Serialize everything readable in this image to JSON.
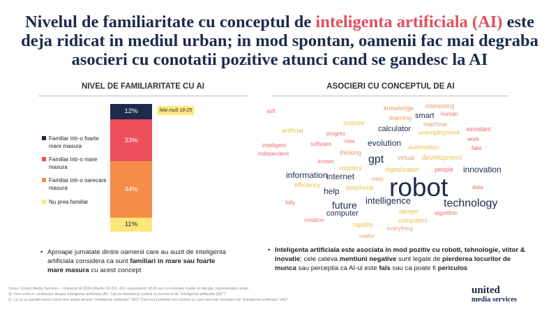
{
  "title": {
    "part1": "Nivelul de familiaritate cu conceptul de ",
    "highlight": "inteligenta artificiala (AI)",
    "part2": " este deja ridicat in mediul urban; in mod spontan, oamenii fac mai degraba asocieri cu conotatii pozitive atunci cand se gandesc la AI",
    "highlight_color": "#e0505c"
  },
  "left_section": {
    "heading": "NIVEL DE FAMILIARITATE CU AI"
  },
  "right_section": {
    "heading": "ASOCIERI CU CONCEPTUL DE AI"
  },
  "mai_mult_label": "Mai mult 18-25",
  "chart_data": {
    "type": "bar",
    "stacked": true,
    "unit": "%",
    "series": [
      {
        "name": "Familiar intr-o foarte mare masura",
        "value": 12,
        "label": "12%",
        "color": "#1c2a4c",
        "text_color": "#ffffff"
      },
      {
        "name": "Familiar intr-o mare masura",
        "value": 33,
        "label": "33%",
        "color": "#ec4f5a",
        "text_color": "#ffffff"
      },
      {
        "name": "Familiar intr-o oarecare masura",
        "value": 44,
        "label": "44%",
        "color": "#f58c48",
        "text_color": "#ffffff"
      },
      {
        "name": "Nu prea familiar",
        "value": 11,
        "label": "11%",
        "color": "#fbe77a",
        "text_color": "#222222"
      }
    ]
  },
  "word_cloud": [
    {
      "text": "robot",
      "color": "#1c2a4c"
    },
    {
      "text": "technology",
      "color": "#1c2a4c"
    },
    {
      "text": "gpt",
      "color": "#1c2a4c"
    },
    {
      "text": "future",
      "color": "#1c2a4c"
    },
    {
      "text": "intelligence",
      "color": "#1c2a4c"
    },
    {
      "text": "information",
      "color": "#1c2a4c"
    },
    {
      "text": "innovation",
      "color": "#1c2a4c"
    },
    {
      "text": "internet",
      "color": "#1c2a4c"
    },
    {
      "text": "evolution",
      "color": "#1c2a4c"
    },
    {
      "text": "help",
      "color": "#1c2a4c"
    },
    {
      "text": "calculator",
      "color": "#1c2a4c"
    },
    {
      "text": "computer",
      "color": "#1c2a4c"
    },
    {
      "text": "smart",
      "color": "#1c2a4c"
    },
    {
      "text": "knowledge",
      "color": "#e0a070"
    },
    {
      "text": "interesting",
      "color": "#e0a070"
    },
    {
      "text": "human",
      "color": "#ec6b6b"
    },
    {
      "text": "soft",
      "color": "#ec6b6b"
    },
    {
      "text": "learning",
      "color": "#e0a070"
    },
    {
      "text": "machine",
      "color": "#e0a070"
    },
    {
      "text": "science",
      "color": "#e8c04a"
    },
    {
      "text": "assistant",
      "color": "#ec6b6b"
    },
    {
      "text": "artificial",
      "color": "#e8c04a"
    },
    {
      "text": "unemployment",
      "color": "#e8c04a"
    },
    {
      "text": "progres",
      "color": "#ec6b6b"
    },
    {
      "text": "work",
      "color": "#ec6b6b"
    },
    {
      "text": "new",
      "color": "#ec6b6b"
    },
    {
      "text": "intelligent",
      "color": "#ec6b6b"
    },
    {
      "text": "software",
      "color": "#ec6b6b"
    },
    {
      "text": "automation",
      "color": "#e8c04a"
    },
    {
      "text": "fake",
      "color": "#ec6b6b"
    },
    {
      "text": "independent",
      "color": "#ec6b6b"
    },
    {
      "text": "thinking",
      "color": "#e0a070"
    },
    {
      "text": "virtual",
      "color": "#e0a070"
    },
    {
      "text": "development",
      "color": "#e8c04a"
    },
    {
      "text": "knows",
      "color": "#ec6b6b"
    },
    {
      "text": "robotics",
      "color": "#e8c04a"
    },
    {
      "text": "digitalization",
      "color": "#e8c04a"
    },
    {
      "text": "people",
      "color": "#ec6b6b"
    },
    {
      "text": "efficiency",
      "color": "#e8c04a"
    },
    {
      "text": "easy",
      "color": "#e0a070"
    },
    {
      "text": "telephone",
      "color": "#e8c04a"
    },
    {
      "text": "data",
      "color": "#ec6b6b"
    },
    {
      "text": "folly",
      "color": "#ec6b6b"
    },
    {
      "text": "danger",
      "color": "#e8c04a"
    },
    {
      "text": "algorithm",
      "color": "#ec6b6b"
    },
    {
      "text": "creation",
      "color": "#ec6b6b"
    },
    {
      "text": "computers",
      "color": "#e8c04a"
    },
    {
      "text": "rapidity",
      "color": "#e8c04a"
    },
    {
      "text": "everything",
      "color": "#e0a070"
    },
    {
      "text": "useful",
      "color": "#e0a070"
    }
  ],
  "bullet_left": {
    "t1": "Aproape jumatate dintre oamenii care au auzit de inteligenta artificiala considera ca sunt ",
    "b1": "familiari in mare sau foarte mare masura",
    "t2": " cu acest concept"
  },
  "bullet_right": {
    "b1": "Inteligenta artificiala este asociata in mod pozitiv cu roboti, tehnologie, viitor & inovatie",
    "t1": "; cele cateva ",
    "b2": "mentiuni negative",
    "t2": " sunt legate de ",
    "b3": "pierderea locurilor de munca",
    "t3": " sau perceptia ca AI-ul este ",
    "b4": "fals",
    "t4": " sau ca poate fi ",
    "b5": "periculos"
  },
  "sources": [
    "Sursa: United Media Services – Impactul AI 2024 (Martie 19-22), 401 respondenti 18-55 ani cu educatie medie si ridicata, reprezentativ urban",
    "Q: Vom vorbi in continuare despre inteligenta artificiala (AI). Cat de familiar(a) sunteti cu termenul de \"inteligenta artificiala (AI)\"?",
    "Q: La ce va ganditi atunci cand vine vorba despre \"inteligenta artificiala\" (AI)? Care sunt primele trei cuvinte cu care asociati conceptul de \"inteligenta artificiala\" (AI)?"
  ],
  "logo": {
    "line1": "united",
    "line2": "media services"
  }
}
